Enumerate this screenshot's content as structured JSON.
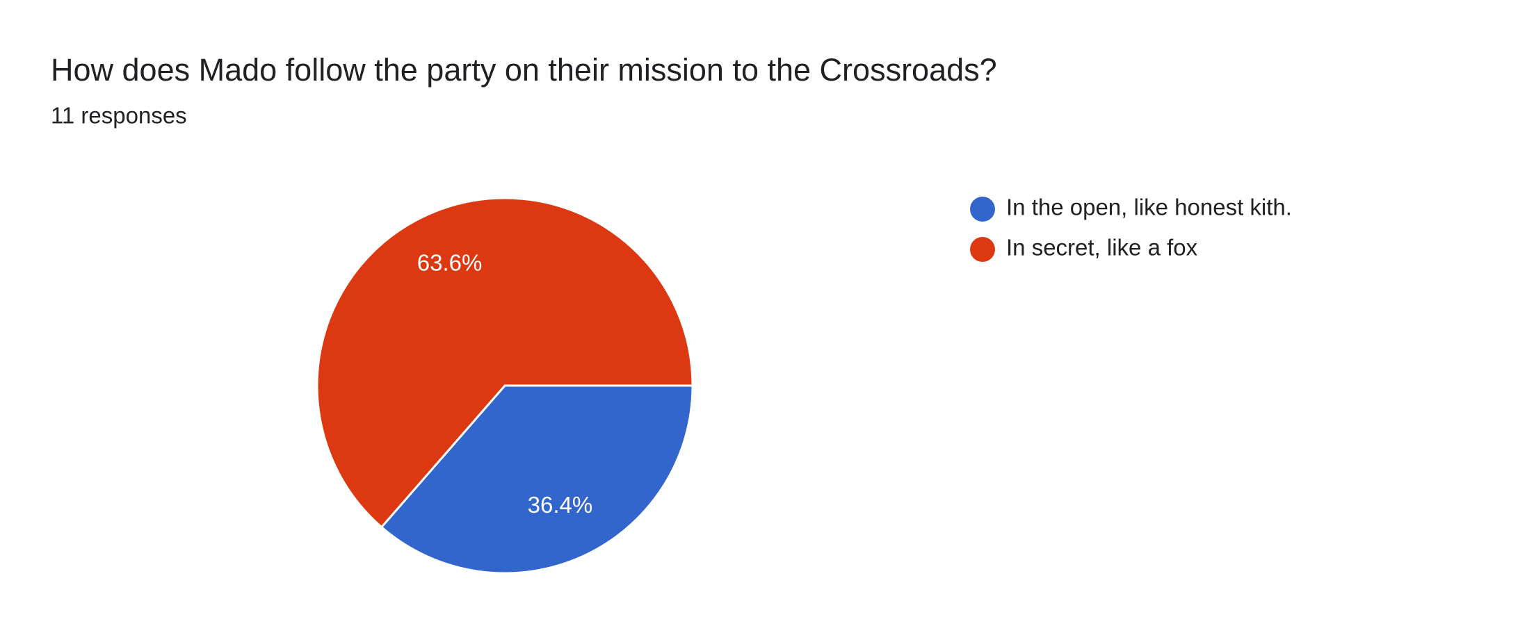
{
  "chart_data": {
    "type": "pie",
    "title": "How does Mado follow the party on their mission to the Crossroads?",
    "subtitle": "11 responses",
    "categories": [
      "In the open, like honest kith.",
      "In secret, like a fox"
    ],
    "values": [
      36.4,
      63.6
    ],
    "value_labels": [
      "36.4%",
      "63.6%"
    ],
    "colors": [
      "#3366cc",
      "#dc3912"
    ],
    "legend": "right"
  }
}
